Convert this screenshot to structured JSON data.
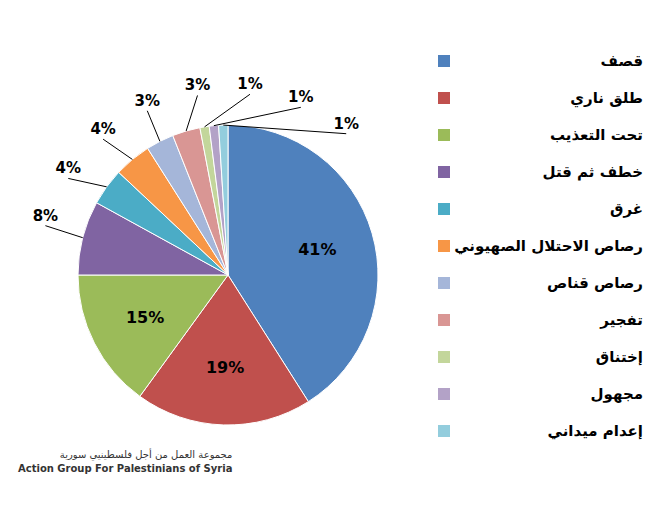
{
  "chart_data": {
    "type": "pie",
    "categories": [
      "قصف",
      "طلق ناري",
      "تحت التعذيب",
      "خطف ثم قتل",
      "غرق",
      "رصاص الاحتلال الصهيوني",
      "رصاص قناص",
      "تفجير",
      "إختناق",
      "مجهول",
      "إعدام ميداني"
    ],
    "values": [
      41,
      19,
      15,
      8,
      4,
      4,
      3,
      3,
      1,
      1,
      1
    ],
    "value_labels": [
      "41%",
      "19%",
      "15%",
      "8%",
      "4%",
      "4%",
      "3%",
      "3%",
      "1%",
      "1%",
      "1%"
    ],
    "colors": [
      "#4f81bd",
      "#c0504d",
      "#9bbb59",
      "#8064a2",
      "#4bacc6",
      "#f79646",
      "#a5b6d9",
      "#d99694",
      "#c3d69b",
      "#b3a2c7",
      "#93cddd"
    ],
    "data_labels": true,
    "legend": "right",
    "annotations": [
      "مجموعة العمل من أجل فلسطينيي سورية",
      "Action Group For Palestinians of Syria"
    ]
  }
}
